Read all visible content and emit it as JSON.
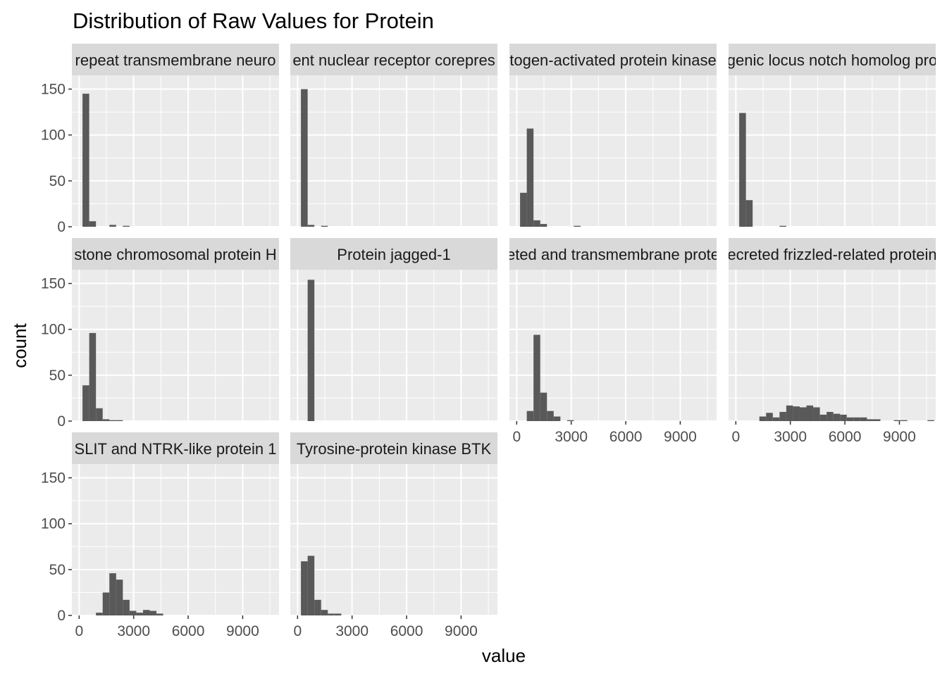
{
  "chart_data": {
    "type": "bar",
    "title": "Distribution of Raw Values for Protein",
    "xlabel": "value",
    "ylabel": "count",
    "xlim": [
      -400,
      11000
    ],
    "ylim": [
      0,
      165
    ],
    "x_ticks": [
      0,
      3000,
      6000,
      9000
    ],
    "y_ticks": [
      0,
      50,
      100,
      150
    ],
    "bin_width": 370,
    "grid": true,
    "bar_color": "#595959",
    "panel_bg": "#ebebeb",
    "strip_bg": "#d9d9d9",
    "panels": [
      {
        "label": "repeat transmembrane neuro",
        "row": 0,
        "col": 0,
        "bins": [
          {
            "x": 370,
            "count": 145
          },
          {
            "x": 740,
            "count": 6
          },
          {
            "x": 1850,
            "count": 2
          },
          {
            "x": 2590,
            "count": 1
          }
        ]
      },
      {
        "label": "ent nuclear receptor corepres",
        "row": 0,
        "col": 1,
        "bins": [
          {
            "x": 370,
            "count": 150
          },
          {
            "x": 740,
            "count": 2
          },
          {
            "x": 1480,
            "count": 1
          }
        ]
      },
      {
        "label": "togen-activated protein kinase",
        "row": 0,
        "col": 2,
        "bins": [
          {
            "x": 370,
            "count": 37
          },
          {
            "x": 740,
            "count": 107
          },
          {
            "x": 1110,
            "count": 7
          },
          {
            "x": 1480,
            "count": 3
          },
          {
            "x": 3330,
            "count": 1
          }
        ]
      },
      {
        "label": "genic locus notch homolog pro",
        "row": 0,
        "col": 3,
        "bins": [
          {
            "x": 370,
            "count": 124
          },
          {
            "x": 740,
            "count": 29
          },
          {
            "x": 2590,
            "count": 1
          }
        ]
      },
      {
        "label": "stone chromosomal protein H",
        "row": 1,
        "col": 0,
        "bins": [
          {
            "x": 370,
            "count": 39
          },
          {
            "x": 740,
            "count": 96
          },
          {
            "x": 1110,
            "count": 14
          },
          {
            "x": 1480,
            "count": 2
          },
          {
            "x": 1850,
            "count": 1
          },
          {
            "x": 2220,
            "count": 1
          }
        ]
      },
      {
        "label": "Protein jagged-1",
        "row": 1,
        "col": 1,
        "bins": [
          {
            "x": 740,
            "count": 154
          }
        ]
      },
      {
        "label": "eted and transmembrane prote",
        "row": 1,
        "col": 2,
        "bins": [
          {
            "x": 740,
            "count": 11
          },
          {
            "x": 1110,
            "count": 94
          },
          {
            "x": 1480,
            "count": 31
          },
          {
            "x": 1850,
            "count": 11
          },
          {
            "x": 2220,
            "count": 5
          },
          {
            "x": 2960,
            "count": 1
          }
        ]
      },
      {
        "label": "ecreted frizzled-related protein",
        "row": 1,
        "col": 3,
        "bins": [
          {
            "x": 1480,
            "count": 5
          },
          {
            "x": 1850,
            "count": 9
          },
          {
            "x": 2220,
            "count": 4
          },
          {
            "x": 2590,
            "count": 10
          },
          {
            "x": 2960,
            "count": 17
          },
          {
            "x": 3330,
            "count": 16
          },
          {
            "x": 3700,
            "count": 15
          },
          {
            "x": 4070,
            "count": 17
          },
          {
            "x": 4440,
            "count": 15
          },
          {
            "x": 4810,
            "count": 7
          },
          {
            "x": 5180,
            "count": 10
          },
          {
            "x": 5550,
            "count": 8
          },
          {
            "x": 5920,
            "count": 7
          },
          {
            "x": 6290,
            "count": 4
          },
          {
            "x": 6660,
            "count": 4
          },
          {
            "x": 7030,
            "count": 4
          },
          {
            "x": 7400,
            "count": 2
          },
          {
            "x": 7770,
            "count": 2
          },
          {
            "x": 8880,
            "count": 1
          },
          {
            "x": 9250,
            "count": 1
          },
          {
            "x": 10730,
            "count": 1
          }
        ]
      },
      {
        "label": "SLIT and NTRK-like protein 1",
        "row": 2,
        "col": 0,
        "bins": [
          {
            "x": 1110,
            "count": 3
          },
          {
            "x": 1480,
            "count": 25
          },
          {
            "x": 1850,
            "count": 46
          },
          {
            "x": 2220,
            "count": 39
          },
          {
            "x": 2590,
            "count": 17
          },
          {
            "x": 2960,
            "count": 5
          },
          {
            "x": 3330,
            "count": 3
          },
          {
            "x": 3700,
            "count": 6
          },
          {
            "x": 4070,
            "count": 5
          },
          {
            "x": 4440,
            "count": 2
          }
        ]
      },
      {
        "label": "Tyrosine-protein kinase BTK",
        "row": 2,
        "col": 1,
        "bins": [
          {
            "x": 370,
            "count": 59
          },
          {
            "x": 740,
            "count": 65
          },
          {
            "x": 1110,
            "count": 17
          },
          {
            "x": 1480,
            "count": 6
          },
          {
            "x": 1850,
            "count": 2
          },
          {
            "x": 2220,
            "count": 2
          }
        ]
      }
    ]
  }
}
